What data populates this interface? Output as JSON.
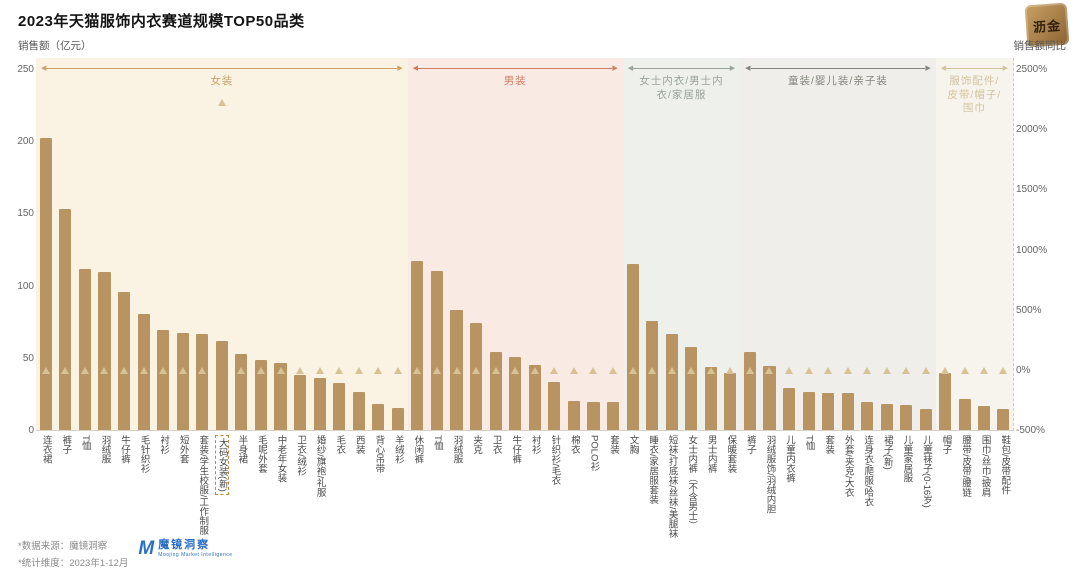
{
  "title": "2023年天猫服饰内衣赛道规模TOP50品类",
  "brand_logo": "沥金",
  "axes": {
    "left_caption": "销售额（亿元）",
    "right_caption": "销售额同比",
    "left_ticks": [
      250,
      200,
      150,
      100,
      50,
      0
    ],
    "right_ticks": [
      "2500%",
      "2000%",
      "1500%",
      "1000%",
      "500%",
      "0%",
      "-500%"
    ]
  },
  "footer": {
    "source": "*数据来源：魔镜洞察",
    "dimension": "*统计维度：2023年1-12月",
    "logo_text": "魔镜洞察",
    "logo_sub": "Moojing Market Intelligence"
  },
  "chart_data": {
    "type": "bar",
    "title": "2023年天猫服饰内衣赛道规模TOP50品类",
    "ylabel_left": "销售额（亿元）",
    "ylabel_right": "销售额同比",
    "left_axis_range": [
      0,
      250
    ],
    "right_axis_range_pct": [
      -500,
      2500
    ],
    "bar_color": "#b79461",
    "triangle_color": "#d8c294",
    "legend": "柱形=销售额（亿元），三角=销售额同比",
    "groups": [
      {
        "name": "女装",
        "accent": "#c9a266",
        "bg": "#faf3e4",
        "highlight_index": 9,
        "categories": [
          "连衣裙",
          "裤子",
          "T恤",
          "羽绒服",
          "牛仔裤",
          "毛针织衫",
          "衬衫",
          "短外套",
          "套装/学生校服/工作制服",
          "大码女装(新)",
          "半身裙",
          "毛呢外套",
          "中老年女装",
          "卫衣/绒衫",
          "婚纱/旗袍/礼服",
          "毛衣",
          "西装",
          "背心吊带",
          "羊绒衫"
        ],
        "values": [
          203,
          154,
          112,
          110,
          96,
          81,
          70,
          68,
          67,
          62,
          53,
          49,
          47,
          39,
          37,
          33,
          27,
          19,
          16
        ],
        "yoy_pct": [
          0,
          0,
          0,
          0,
          0,
          0,
          0,
          0,
          0,
          2230,
          0,
          0,
          0,
          0,
          0,
          0,
          0,
          0,
          0
        ]
      },
      {
        "name": "男装",
        "accent": "#cf7f63",
        "bg": "#f9ebe3",
        "highlight_index": -1,
        "categories": [
          "休闲裤",
          "T恤",
          "羽绒服",
          "夹克",
          "卫衣",
          "牛仔裤",
          "衬衫",
          "针织衫/毛衣",
          "棉衣",
          "POLO衫",
          "套装"
        ],
        "values": [
          118,
          111,
          84,
          75,
          55,
          51,
          46,
          34,
          21,
          20,
          20
        ],
        "yoy_pct": [
          0,
          0,
          0,
          0,
          0,
          0,
          0,
          0,
          0,
          0,
          0
        ]
      },
      {
        "name": "女士内衣/男士内衣/家居服",
        "accent": "#9aa49a",
        "bg": "#edf0eb",
        "highlight_index": -1,
        "categories": [
          "文胸",
          "睡衣/家居服套装",
          "短袜/打底袜/丝袜/美腿袜",
          "女士内裤（不含男士）",
          "男士内裤",
          "保暖套装"
        ],
        "values": [
          116,
          76,
          67,
          58,
          44,
          40
        ],
        "yoy_pct": [
          0,
          0,
          0,
          0,
          0,
          0
        ]
      },
      {
        "name": "童装/婴儿装/亲子装",
        "accent": "#82867c",
        "bg": "#f0eeea",
        "highlight_index": -1,
        "categories": [
          "裤子",
          "羽绒服饰/羽绒内胆",
          "儿童内衣裤",
          "T恤",
          "套装",
          "外套/夹克/大衣",
          "连身衣/爬服/哈衣",
          "裙子(新)",
          "儿童家居服",
          "儿童袜子(0-16岁)"
        ],
        "values": [
          55,
          45,
          30,
          27,
          26,
          26,
          20,
          19,
          18,
          15
        ],
        "yoy_pct": [
          0,
          0,
          0,
          0,
          0,
          0,
          0,
          0,
          0,
          0
        ]
      },
      {
        "name": "服饰配件/皮带/帽子/围巾",
        "accent": "#d3c49e",
        "bg": "#f7f4ed",
        "highlight_index": -1,
        "categories": [
          "帽子",
          "腰带/皮带/腰链",
          "围巾/丝巾/披肩",
          "鞋包/皮带配件"
        ],
        "values": [
          40,
          22,
          17,
          15
        ],
        "yoy_pct": [
          0,
          0,
          0,
          0
        ]
      }
    ]
  }
}
